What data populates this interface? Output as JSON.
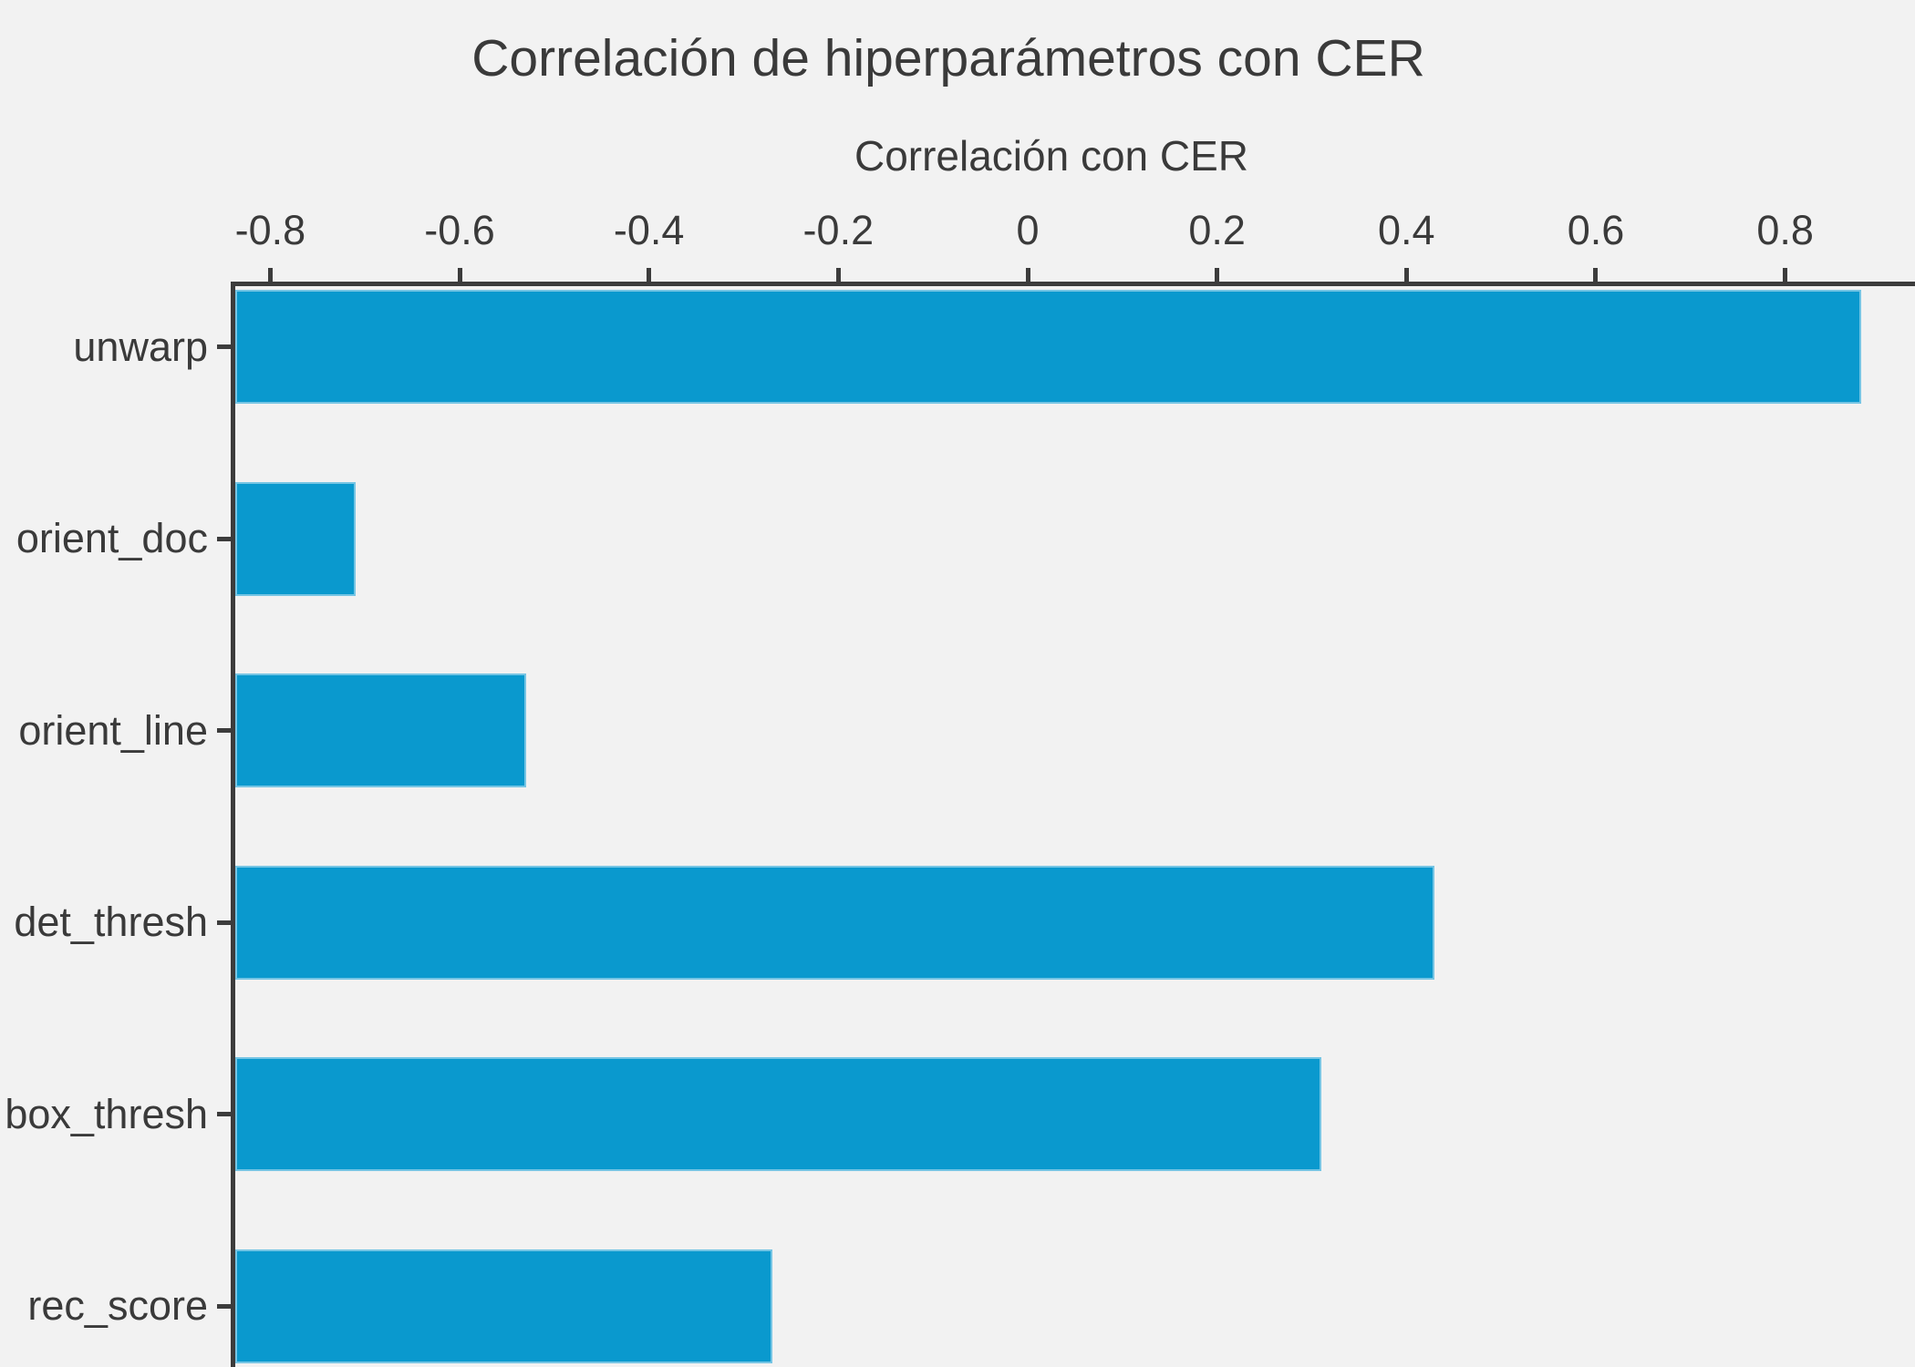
{
  "figure": {
    "background_color": "#f2f2f2",
    "text_color": "#3a3a3a",
    "axis_color": "#3c3c3c"
  },
  "chart_data": {
    "type": "bar",
    "orientation": "horizontal",
    "title": "Correlación de hiperparámetros con CER",
    "xlabel": "Correlación con CER",
    "ylabel": "",
    "categories": [
      "unwarp",
      "orient_doc",
      "orient_line",
      "det_thresh",
      "box_thresh",
      "rec_score"
    ],
    "values": [
      0.88,
      -0.71,
      -0.53,
      0.43,
      0.31,
      -0.27
    ],
    "xticks": [
      -0.8,
      -0.6,
      -0.4,
      -0.2,
      0,
      0.2,
      0.4,
      0.6,
      0.8
    ],
    "xtick_labels": [
      "-0.8",
      "-0.6",
      "-0.4",
      "-0.2",
      "0",
      "0.2",
      "0.4",
      "0.6",
      "0.8"
    ],
    "xlim_visible": [
      -0.84,
      0.94
    ],
    "bars_start_at": "xmin",
    "xaxis_position": "top",
    "grid": false,
    "legend": false,
    "bar_color": "#0a99ce",
    "bar_edge_color": "#bee2f3"
  }
}
